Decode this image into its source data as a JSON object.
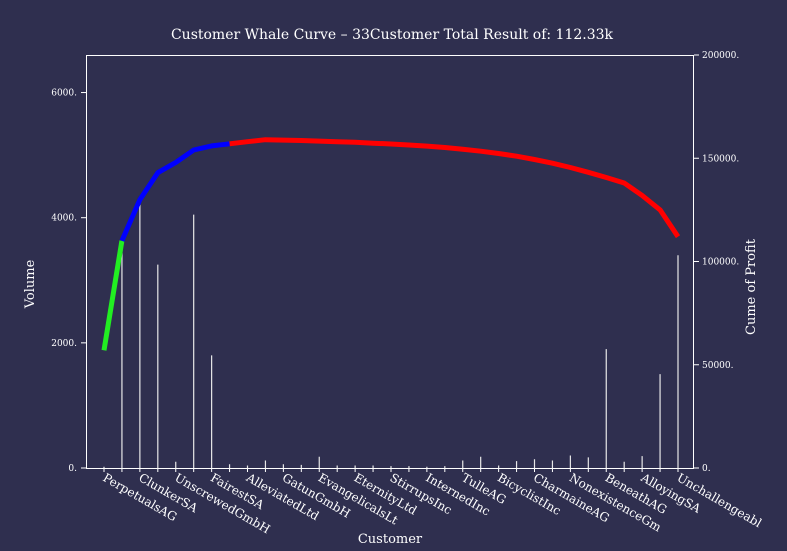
{
  "chart_data": {
    "type": "bar",
    "title": "Customer Whale Curve – 33Customer Total Result of: 112.33k",
    "xlabel": "Customer",
    "ylabel": "Volume",
    "y2label": "Cume of Profit",
    "ylim": [
      0,
      6600
    ],
    "y2lim": [
      0,
      200000
    ],
    "yticks": [
      "0.",
      "2000.",
      "4000.",
      "6000."
    ],
    "y2ticks": [
      "0.",
      "50000.",
      "100000.",
      "150000.",
      "200000."
    ],
    "ytick_values": [
      0,
      2000,
      4000,
      6000
    ],
    "y2tick_values": [
      0,
      50000,
      100000,
      150000,
      200000
    ],
    "categories": [
      "PerpetualsAG",
      "",
      "ClunkerSA",
      "",
      "UnscrewedGmbH",
      "",
      "FairestSA",
      "",
      "AlleviatedLtd",
      "",
      "GatunGmbH",
      "",
      "EvangelicalsLt",
      "",
      "EternityLtd",
      "",
      "StirrupsInc",
      "",
      "InternedInc",
      "",
      "TulleAG",
      "",
      "BicyclistInc",
      "",
      "CharmaineAG",
      "",
      "NonexistenceGm",
      "",
      "BeneathAG",
      "",
      "AlloyingSA",
      "",
      "Unchallengeabl"
    ],
    "series": [
      {
        "type": "bar",
        "axis": "left",
        "values": [
          20,
          3600,
          4250,
          3250,
          100,
          4050,
          1800,
          60,
          40,
          120,
          60,
          50,
          180,
          40,
          40,
          40,
          30,
          30,
          20,
          30,
          120,
          180,
          40,
          110,
          140,
          120,
          200,
          170,
          1900,
          100,
          190,
          1500,
          3400
        ]
      },
      {
        "type": "line",
        "axis": "right",
        "values": [
          57000,
          110000,
          130000,
          143000,
          148000,
          154000,
          156000,
          157000,
          158000,
          159000,
          158800,
          158600,
          158300,
          158000,
          157700,
          157300,
          156900,
          156400,
          155900,
          155200,
          154400,
          153400,
          152300,
          151000,
          149400,
          147600,
          145500,
          143200,
          140700,
          138000,
          132000,
          125000,
          112000
        ]
      }
    ],
    "segment_colors": [
      "#22ee22",
      "#0000ff",
      "#ff0000"
    ],
    "segments": [
      [
        0,
        1
      ],
      [
        1,
        7
      ],
      [
        7,
        32
      ]
    ],
    "grid": false
  }
}
